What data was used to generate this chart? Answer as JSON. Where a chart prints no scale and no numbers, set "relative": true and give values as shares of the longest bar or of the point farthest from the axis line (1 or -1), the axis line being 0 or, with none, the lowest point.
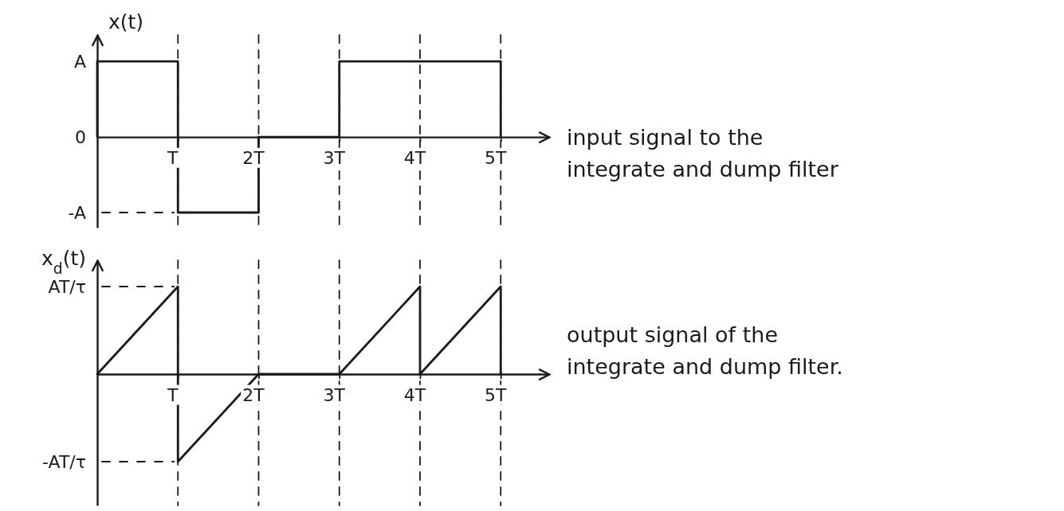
{
  "chart_data": [
    {
      "type": "step",
      "relative": true,
      "ylabel": "x(t)",
      "x": [
        0,
        0,
        1,
        2,
        3,
        5,
        5
      ],
      "series": [
        {
          "color": "#1a1a1a",
          "values": [
            0,
            1,
            -1,
            0,
            1,
            1,
            0
          ]
        }
      ],
      "xlim": [
        0,
        5.6
      ],
      "xticks": [
        {
          "value": 1,
          "label": "T"
        },
        {
          "value": 2,
          "label": "2T"
        },
        {
          "value": 3,
          "label": "3T"
        },
        {
          "value": 4,
          "label": "4T"
        },
        {
          "value": 5,
          "label": "5T"
        }
      ],
      "ref_lines": [
        {
          "axis": "x",
          "value": 1,
          "line_style": "dashed"
        },
        {
          "axis": "x",
          "value": 2,
          "line_style": "dashed"
        },
        {
          "axis": "x",
          "value": 3,
          "line_style": "dashed"
        },
        {
          "axis": "x",
          "value": 4,
          "line_style": "dashed"
        },
        {
          "axis": "x",
          "value": 5,
          "line_style": "dashed"
        },
        {
          "axis": "y",
          "value": -1,
          "label": "-A",
          "line_style": "dashed"
        }
      ],
      "annotations": [
        {
          "text": "A",
          "x": 0,
          "y": 1
        },
        {
          "text": "0",
          "x": 0,
          "y": 0
        },
        "input signal to the integrate and dump filter"
      ]
    },
    {
      "type": "line",
      "relative": true,
      "ylabel": "x$_{d}$(t)",
      "x": [
        0,
        1,
        1,
        2,
        3,
        4,
        4,
        5,
        5
      ],
      "series": [
        {
          "color": "#1a1a1a",
          "values": [
            0,
            1,
            -1,
            0,
            0,
            1,
            0,
            1,
            0
          ]
        }
      ],
      "xlim": [
        0,
        5.6
      ],
      "xticks": [
        {
          "value": 1,
          "label": "T"
        },
        {
          "value": 2,
          "label": "2T"
        },
        {
          "value": 3,
          "label": "3T"
        },
        {
          "value": 4,
          "label": "4T"
        },
        {
          "value": 5,
          "label": "5T"
        }
      ],
      "ref_lines": [
        {
          "axis": "x",
          "value": 1,
          "line_style": "dashed"
        },
        {
          "axis": "x",
          "value": 2,
          "line_style": "dashed"
        },
        {
          "axis": "x",
          "value": 3,
          "line_style": "dashed"
        },
        {
          "axis": "x",
          "value": 4,
          "line_style": "dashed"
        },
        {
          "axis": "x",
          "value": 5,
          "line_style": "dashed"
        },
        {
          "axis": "y",
          "value": 1,
          "label": "AT/τ",
          "line_style": "dashed"
        },
        {
          "axis": "y",
          "value": -1,
          "label": "-AT/τ",
          "line_style": "dashed"
        }
      ],
      "annotations": [
        "output signal of the integrate and dump filter."
      ]
    }
  ]
}
